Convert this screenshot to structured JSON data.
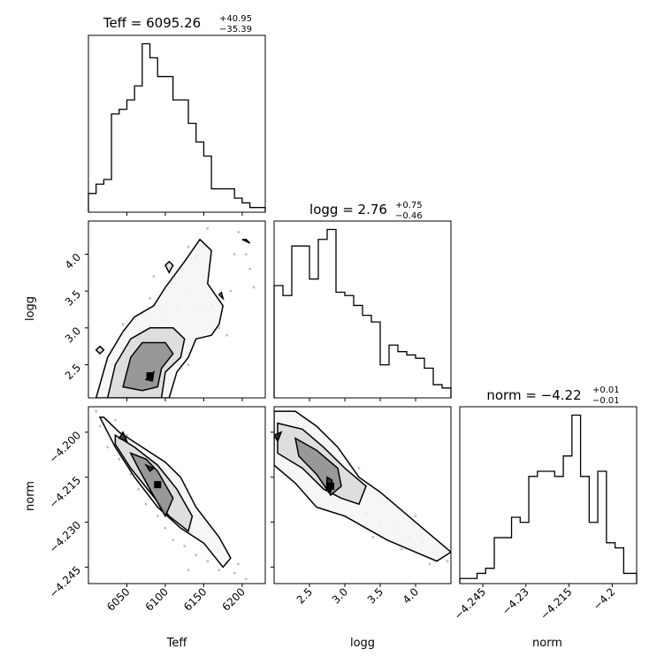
{
  "chart_data": [
    {
      "panel": "Teff",
      "type": "histogram",
      "title": {
        "param": "Teff",
        "median": "6095.26",
        "plus": "+40.95",
        "minus": "−35.39"
      },
      "xlim": [
        6000,
        6230
      ],
      "x_ticks": [
        6050,
        6100,
        6150,
        6200
      ],
      "bin_edges": [
        6000,
        6010,
        6020,
        6030,
        6040,
        6050,
        6060,
        6070,
        6080,
        6090,
        6100,
        6110,
        6120,
        6130,
        6140,
        6150,
        6160,
        6170,
        6180,
        6190,
        6200,
        6210,
        6220,
        6230
      ],
      "counts": [
        4,
        6,
        7,
        21,
        22,
        24,
        27,
        36,
        33,
        29,
        29,
        24,
        24,
        19,
        15,
        12,
        5,
        5,
        5,
        3,
        2,
        1,
        1
      ]
    },
    {
      "panel": "logg",
      "type": "histogram",
      "title": {
        "param": "logg",
        "median": "2.76",
        "plus": "+0.75",
        "minus": "−0.46"
      },
      "xlim": [
        2.0,
        4.5
      ],
      "x_ticks": [
        2.5,
        3.0,
        3.5,
        4.0
      ],
      "bin_edges": [
        2.0,
        2.125,
        2.25,
        2.375,
        2.5,
        2.625,
        2.75,
        2.875,
        3.0,
        3.125,
        3.25,
        3.375,
        3.5,
        3.625,
        3.75,
        3.875,
        4.0,
        4.125,
        4.25,
        4.375,
        4.5
      ],
      "counts": [
        17,
        15.5,
        23,
        23,
        18,
        24,
        25.5,
        16,
        15.5,
        14,
        12.5,
        11.5,
        5,
        8,
        7,
        6.5,
        6,
        4.5,
        2,
        1.5
      ]
    },
    {
      "panel": "norm",
      "type": "histogram",
      "title": {
        "param": "norm",
        "median": "−4.22",
        "plus": "+0.01",
        "minus": "−0.01"
      },
      "xlim": [
        -4.253,
        -4.1915
      ],
      "x_ticks": [
        -4.245,
        -4.23,
        -4.215,
        -4.2
      ],
      "bin_edges": [
        -4.253,
        -4.25,
        -4.247,
        -4.244,
        -4.241,
        -4.238,
        -4.235,
        -4.232,
        -4.229,
        -4.226,
        -4.223,
        -4.22,
        -4.217,
        -4.214,
        -4.211,
        -4.208,
        -4.205,
        -4.202,
        -4.199,
        -4.196,
        -4.1915
      ],
      "counts": [
        1,
        1,
        2,
        3,
        9,
        9,
        13,
        12,
        21,
        22,
        22,
        21,
        25,
        33,
        21,
        12,
        22,
        8,
        7,
        2
      ]
    },
    {
      "panel": "logg_vs_Teff",
      "type": "scatter",
      "xlabel": "",
      "ylabel": "logg",
      "xlim": [
        6000,
        6230
      ],
      "ylim": [
        2.05,
        4.45
      ],
      "x_ticks": [
        6050,
        6100,
        6150,
        6200
      ],
      "y_ticks": [
        2.5,
        3.0,
        3.5,
        4.0
      ],
      "density_peak": [
        6080,
        2.35
      ],
      "contour_levels": [
        [
          [
            6010,
            2.05
          ],
          [
            6025,
            2.6
          ],
          [
            6045,
            2.95
          ],
          [
            6060,
            3.15
          ],
          [
            6085,
            3.3
          ],
          [
            6100,
            3.55
          ],
          [
            6125,
            3.9
          ],
          [
            6145,
            4.2
          ],
          [
            6160,
            4.05
          ],
          [
            6155,
            3.6
          ],
          [
            6175,
            3.3
          ],
          [
            6170,
            3.05
          ],
          [
            6160,
            2.9
          ],
          [
            6140,
            2.85
          ],
          [
            6130,
            2.6
          ],
          [
            6115,
            2.4
          ],
          [
            6105,
            2.05
          ]
        ],
        [
          [
            6025,
            2.05
          ],
          [
            6035,
            2.5
          ],
          [
            6055,
            2.85
          ],
          [
            6080,
            3.0
          ],
          [
            6110,
            3.0
          ],
          [
            6125,
            2.85
          ],
          [
            6120,
            2.6
          ],
          [
            6100,
            2.4
          ],
          [
            6095,
            2.05
          ]
        ],
        [
          [
            6045,
            2.2
          ],
          [
            6055,
            2.6
          ],
          [
            6070,
            2.8
          ],
          [
            6100,
            2.8
          ],
          [
            6110,
            2.65
          ],
          [
            6095,
            2.45
          ],
          [
            6090,
            2.2
          ],
          [
            6070,
            2.15
          ]
        ],
        [
          [
            6075,
            2.3
          ],
          [
            6085,
            2.4
          ],
          [
            6083,
            2.28
          ]
        ]
      ],
      "outlier_contours": [
        [
          [
            6010,
            2.7
          ],
          [
            6015,
            2.65
          ],
          [
            6020,
            2.7
          ],
          [
            6015,
            2.75
          ]
        ],
        [
          [
            6200,
            4.2
          ],
          [
            6210,
            4.15
          ],
          [
            6205,
            4.2
          ]
        ],
        [
          [
            6100,
            3.85
          ],
          [
            6105,
            3.75
          ],
          [
            6110,
            3.85
          ],
          [
            6105,
            3.9
          ]
        ],
        [
          [
            6170,
            3.45
          ],
          [
            6175,
            3.4
          ],
          [
            6173,
            3.48
          ]
        ]
      ],
      "samples": [
        [
          6040,
          2.4
        ],
        [
          6050,
          2.6
        ],
        [
          6065,
          2.9
        ],
        [
          6070,
          3.2
        ],
        [
          6080,
          3.4
        ],
        [
          6090,
          2.7
        ],
        [
          6095,
          3.1
        ],
        [
          6100,
          3.3
        ],
        [
          6110,
          3.6
        ],
        [
          6120,
          3.8
        ],
        [
          6130,
          4.1
        ],
        [
          6140,
          3.95
        ],
        [
          6150,
          3.7
        ],
        [
          6160,
          3.3
        ],
        [
          6170,
          3.0
        ],
        [
          6180,
          2.9
        ],
        [
          6185,
          3.5
        ],
        [
          6190,
          4.0
        ],
        [
          6195,
          4.3
        ],
        [
          6205,
          4.0
        ],
        [
          6130,
          2.5
        ],
        [
          6030,
          2.2
        ],
        [
          6060,
          2.15
        ],
        [
          6075,
          2.55
        ],
        [
          6105,
          2.95
        ],
        [
          6115,
          3.25
        ],
        [
          6125,
          3.45
        ],
        [
          6145,
          3.25
        ],
        [
          6155,
          4.35
        ],
        [
          6215,
          3.55
        ],
        [
          6210,
          3.8
        ],
        [
          6085,
          3.7
        ],
        [
          6045,
          3.05
        ],
        [
          6020,
          2.35
        ]
      ]
    },
    {
      "panel": "norm_vs_Teff",
      "type": "scatter",
      "xlabel": "Teff",
      "ylabel": "norm",
      "xlim": [
        6000,
        6230
      ],
      "ylim": [
        -4.2505,
        -4.1915
      ],
      "x_ticks": [
        6050,
        6100,
        6150,
        6200
      ],
      "y_ticks": [
        -4.245,
        -4.23,
        -4.215,
        -4.2
      ],
      "density_peak": [
        6090,
        -4.2175
      ],
      "contour_levels": [
        [
          [
            6020,
            -4.195
          ],
          [
            6040,
            -4.2
          ],
          [
            6070,
            -4.205
          ],
          [
            6100,
            -4.21
          ],
          [
            6120,
            -4.215
          ],
          [
            6140,
            -4.225
          ],
          [
            6170,
            -4.235
          ],
          [
            6185,
            -4.242
          ],
          [
            6175,
            -4.245
          ],
          [
            6150,
            -4.237
          ],
          [
            6120,
            -4.232
          ],
          [
            6090,
            -4.225
          ],
          [
            6060,
            -4.215
          ],
          [
            6035,
            -4.205
          ],
          [
            6015,
            -4.195
          ]
        ],
        [
          [
            6035,
            -4.201
          ],
          [
            6060,
            -4.205
          ],
          [
            6090,
            -4.211
          ],
          [
            6115,
            -4.219
          ],
          [
            6135,
            -4.228
          ],
          [
            6130,
            -4.233
          ],
          [
            6105,
            -4.228
          ],
          [
            6080,
            -4.22
          ],
          [
            6055,
            -4.212
          ],
          [
            6035,
            -4.204
          ]
        ],
        [
          [
            6055,
            -4.207
          ],
          [
            6075,
            -4.209
          ],
          [
            6090,
            -4.213
          ],
          [
            6110,
            -4.222
          ],
          [
            6100,
            -4.228
          ],
          [
            6080,
            -4.219
          ],
          [
            6065,
            -4.212
          ]
        ],
        [
          [
            6040,
            -4.202
          ],
          [
            6045,
            -4.2
          ],
          [
            6050,
            -4.203
          ]
        ],
        [
          [
            6075,
            -4.211
          ],
          [
            6085,
            -4.212
          ],
          [
            6080,
            -4.213
          ]
        ]
      ],
      "samples": [
        [
          6015,
          -4.198
        ],
        [
          6025,
          -4.205
        ],
        [
          6040,
          -4.209
        ],
        [
          6055,
          -4.214
        ],
        [
          6065,
          -4.219
        ],
        [
          6075,
          -4.224
        ],
        [
          6090,
          -4.228
        ],
        [
          6100,
          -4.232
        ],
        [
          6110,
          -4.236
        ],
        [
          6125,
          -4.238
        ],
        [
          6140,
          -4.241
        ],
        [
          6155,
          -4.243
        ],
        [
          6170,
          -4.246
        ],
        [
          6190,
          -4.247
        ],
        [
          6205,
          -4.249
        ],
        [
          6035,
          -4.196
        ],
        [
          6050,
          -4.201
        ],
        [
          6070,
          -4.207
        ],
        [
          6095,
          -4.215
        ],
        [
          6120,
          -4.222
        ],
        [
          6145,
          -4.229
        ],
        [
          6160,
          -4.233
        ],
        [
          6180,
          -4.24
        ],
        [
          6195,
          -4.244
        ],
        [
          6130,
          -4.246
        ],
        [
          6010,
          -4.193
        ],
        [
          6105,
          -4.219
        ]
      ]
    },
    {
      "panel": "norm_vs_logg",
      "type": "scatter",
      "xlabel": "logg",
      "ylabel": "",
      "xlim": [
        2.0,
        4.5
      ],
      "ylim": [
        -4.2505,
        -4.1915
      ],
      "x_ticks": [
        2.5,
        3.0,
        3.5,
        4.0
      ],
      "y_ticks": [
        -4.245,
        -4.23,
        -4.215,
        -4.2
      ],
      "density_peak": [
        2.8,
        -4.218
      ],
      "contour_levels": [
        [
          [
            2.0,
            -4.193
          ],
          [
            2.3,
            -4.193
          ],
          [
            2.6,
            -4.198
          ],
          [
            2.9,
            -4.205
          ],
          [
            3.2,
            -4.215
          ],
          [
            3.5,
            -4.22
          ],
          [
            3.8,
            -4.226
          ],
          [
            4.1,
            -4.232
          ],
          [
            4.4,
            -4.238
          ],
          [
            4.5,
            -4.24
          ],
          [
            4.3,
            -4.243
          ],
          [
            4.0,
            -4.24
          ],
          [
            3.6,
            -4.236
          ],
          [
            3.3,
            -4.232
          ],
          [
            3.0,
            -4.228
          ],
          [
            2.6,
            -4.225
          ],
          [
            2.3,
            -4.217
          ],
          [
            2.0,
            -4.211
          ]
        ],
        [
          [
            2.05,
            -4.197
          ],
          [
            2.4,
            -4.199
          ],
          [
            2.7,
            -4.205
          ],
          [
            3.0,
            -4.212
          ],
          [
            3.3,
            -4.218
          ],
          [
            3.2,
            -4.224
          ],
          [
            2.95,
            -4.222
          ],
          [
            2.7,
            -4.219
          ],
          [
            2.4,
            -4.212
          ],
          [
            2.05,
            -4.207
          ]
        ],
        [
          [
            2.3,
            -4.202
          ],
          [
            2.6,
            -4.206
          ],
          [
            2.9,
            -4.212
          ],
          [
            2.95,
            -4.218
          ],
          [
            2.8,
            -4.221
          ],
          [
            2.6,
            -4.214
          ],
          [
            2.35,
            -4.208
          ]
        ],
        [
          [
            2.75,
            -4.215
          ],
          [
            2.82,
            -4.216
          ],
          [
            2.8,
            -4.22
          ],
          [
            2.74,
            -4.219
          ]
        ],
        [
          [
            2.0,
            -4.201
          ],
          [
            2.1,
            -4.2
          ],
          [
            2.05,
            -4.203
          ]
        ]
      ],
      "samples": [
        [
          2.1,
          -4.196
        ],
        [
          2.3,
          -4.203
        ],
        [
          2.5,
          -4.209
        ],
        [
          2.7,
          -4.213
        ],
        [
          2.9,
          -4.219
        ],
        [
          3.1,
          -4.223
        ],
        [
          3.3,
          -4.227
        ],
        [
          3.5,
          -4.23
        ],
        [
          3.7,
          -4.232
        ],
        [
          3.9,
          -4.235
        ],
        [
          4.1,
          -4.237
        ],
        [
          4.3,
          -4.24
        ],
        [
          4.45,
          -4.243
        ],
        [
          2.2,
          -4.207
        ],
        [
          2.6,
          -4.218
        ],
        [
          3.0,
          -4.228
        ],
        [
          3.4,
          -4.235
        ],
        [
          3.8,
          -4.239
        ],
        [
          4.2,
          -4.244
        ],
        [
          3.6,
          -4.222
        ],
        [
          2.4,
          -4.195
        ],
        [
          4.0,
          -4.228
        ],
        [
          3.2,
          -4.212
        ],
        [
          2.85,
          -4.225
        ]
      ]
    }
  ]
}
